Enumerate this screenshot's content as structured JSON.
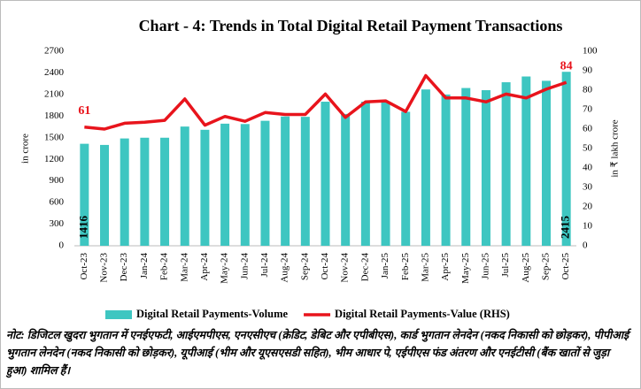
{
  "chart_data": {
    "type": "bar",
    "title": "Chart - 4: Trends in Total Digital Retail Payment Transactions",
    "y_label": "in crore",
    "y2_label": "in ₹ lakh crore",
    "categories": [
      "Oct-23",
      "Nov-23",
      "Dec-23",
      "Jan-24",
      "Feb-24",
      "Mar-24",
      "Apr-24",
      "May-24",
      "Jun-24",
      "Jul-24",
      "Aug-24",
      "Sep-24",
      "Oct-24",
      "Nov-24",
      "Dec-24",
      "Jan-25",
      "Feb-25",
      "Mar-25",
      "Apr-25",
      "May-25",
      "Jun-25",
      "Jul-25",
      "Aug-25",
      "Sep-25",
      "Oct-25"
    ],
    "series": [
      {
        "name": "Digital Retail Payments-Volume",
        "type": "bar",
        "color": "#3ec6c1",
        "values": [
          1416,
          1400,
          1490,
          1500,
          1500,
          1655,
          1610,
          1695,
          1690,
          1735,
          1795,
          1790,
          2000,
          1830,
          2000,
          2000,
          1860,
          2170,
          2100,
          2190,
          2160,
          2270,
          2350,
          2290,
          2415
        ],
        "value_labels": [
          "1416",
          null,
          null,
          null,
          null,
          null,
          null,
          null,
          null,
          null,
          null,
          null,
          null,
          null,
          null,
          null,
          null,
          null,
          null,
          null,
          null,
          null,
          null,
          null,
          "2415"
        ]
      },
      {
        "name": "Digital Retail Payments-Value (RHS)",
        "type": "line",
        "axis": "y2",
        "color": "#e8141c",
        "values": [
          61,
          60,
          63,
          63.5,
          64.5,
          75.5,
          62,
          66.5,
          64,
          68.5,
          67.5,
          67.5,
          78,
          66,
          74,
          74.5,
          69,
          87.5,
          76,
          76,
          74,
          78,
          76,
          80.5,
          84
        ],
        "value_labels": [
          "61",
          null,
          null,
          null,
          null,
          null,
          null,
          null,
          null,
          null,
          null,
          null,
          null,
          null,
          null,
          null,
          null,
          null,
          null,
          null,
          null,
          null,
          null,
          null,
          "84"
        ]
      }
    ],
    "ylim": [
      0,
      2700
    ],
    "yticks": [
      0,
      300,
      600,
      900,
      1200,
      1500,
      1800,
      2100,
      2400,
      2700
    ],
    "y2lim": [
      0,
      100
    ],
    "y2ticks": [
      0,
      10,
      20,
      30,
      40,
      50,
      60,
      70,
      80,
      90,
      100
    ],
    "grid": false,
    "legend": "bottom",
    "note": "नोट: डिजिटल खुदरा भुगतान में एनईएफटी, आईएमपीएस, एनएसीएच (क्रेडिट, डेबिट और एपीबीएस), कार्ड भुगतान लेनदेन (नकद निकासी को छोड़कर), पीपीआई भुगतान लेनदेन (नकद निकासी को छोड़कर), यूपीआई (भीम और यूएसएसडी सहित), भीम आधार पे, एईपीएस फंड अंतरण और एनईटीसी (बैंक खातों से जुड़ा हुआ) शामिल हैं।"
  }
}
